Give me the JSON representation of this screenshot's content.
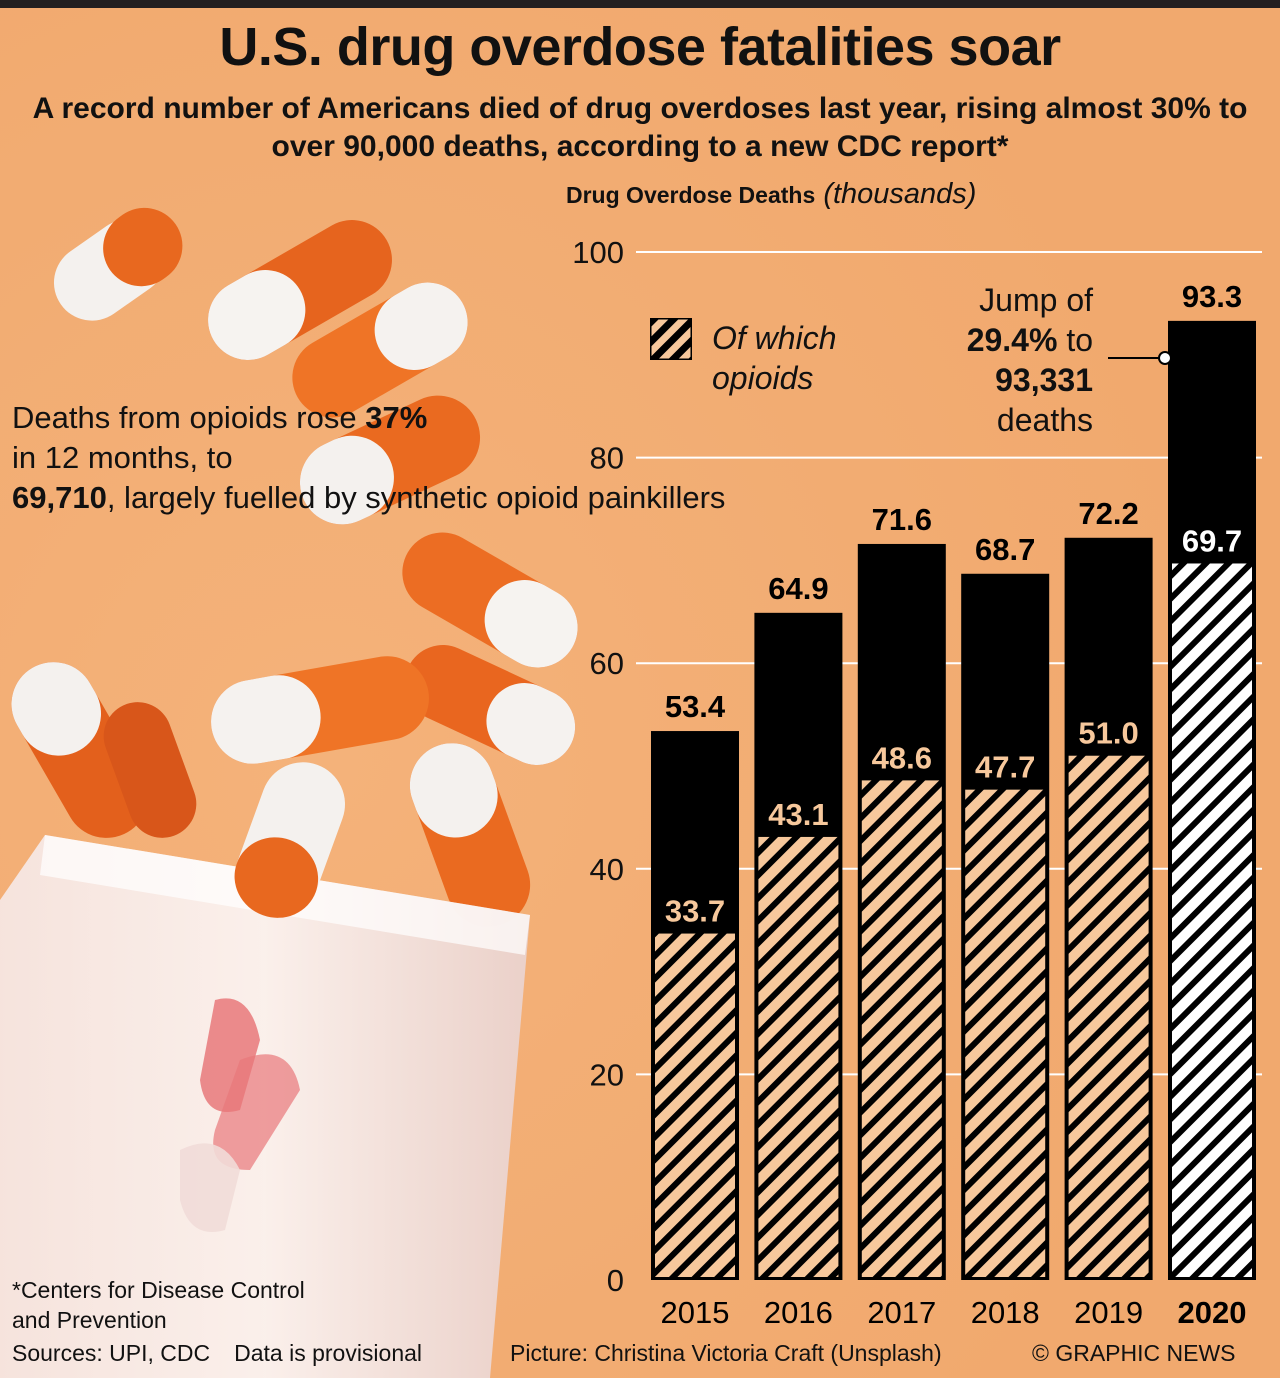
{
  "title": "U.S. drug overdose fatalities soar",
  "subtitle": "A record number of Americans died of drug overdoses last year, rising almost 30% to over 90,000 deaths, according to a new CDC report*",
  "left_note": {
    "part1": "Deaths from opioids rose ",
    "bold1": "37%",
    "part2": " in 12 months, to ",
    "bold2": "69,710",
    "part3": ", largely fuelled by synthetic opioid painkillers"
  },
  "jump_note": {
    "line1": "Jump of",
    "bold1": "29.4%",
    "line2": " to",
    "bold2": "93,331",
    "line3": "deaths"
  },
  "legend": {
    "label": "Of which opioids"
  },
  "footnote": "*Centers for Disease Control and Prevention",
  "sources": {
    "sources": "Sources: UPI, CDC",
    "provisional": "Data is provisional"
  },
  "picture_credit": "Picture: Christina Victoria Craft (Unsplash)",
  "copyright": "© GRAPHIC NEWS",
  "colors": {
    "background": "#f2ad73",
    "bar_total": "#000000",
    "hatch_light": "#f7c89c",
    "hatch_2020": "#ffffff"
  },
  "chart_data": {
    "type": "bar",
    "title": "Drug Overdose Deaths",
    "title_unit": "(thousands)",
    "categories": [
      "2015",
      "2016",
      "2017",
      "2018",
      "2019",
      "2020"
    ],
    "series": [
      {
        "name": "",
        "values": [
          53.4,
          64.9,
          71.6,
          68.7,
          72.2,
          93.3
        ]
      },
      {
        "name": "Of which opioids",
        "values": [
          33.7,
          43.1,
          48.6,
          47.7,
          51.0,
          69.7
        ]
      }
    ],
    "total_labels": [
      "53.4",
      "64.9",
      "71.6",
      "68.7",
      "72.2",
      "93.3"
    ],
    "opioid_labels": [
      "33.7",
      "43.1",
      "48.6",
      "47.7",
      "51.0",
      "69.7"
    ],
    "ylim": [
      0,
      100
    ],
    "yticks": [
      0,
      20,
      40,
      60,
      80,
      100
    ],
    "grid": true,
    "highlight_category": "2020",
    "legend_position": "top-left"
  }
}
